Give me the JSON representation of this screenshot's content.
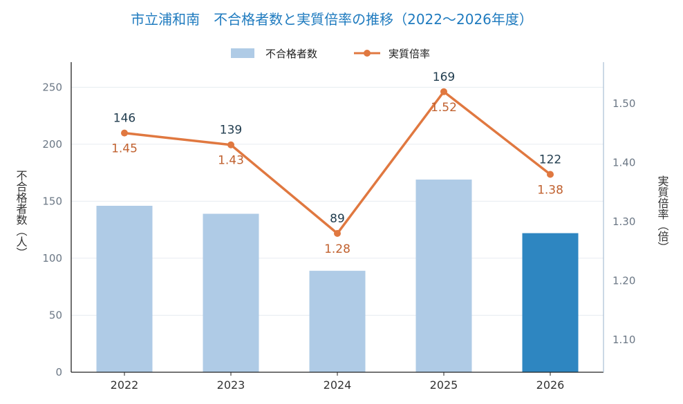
{
  "chart_data": {
    "type": "bar",
    "title": "市立浦和南　不合格者数と実質倍率の推移（2022〜2026年度）",
    "categories": [
      "2022",
      "2023",
      "2024",
      "2025",
      "2026"
    ],
    "series": [
      {
        "name": "不合格者数",
        "kind": "bar",
        "axis": "left",
        "values": [
          146,
          139,
          89,
          169,
          122
        ],
        "color": "#afcbe6",
        "highlight_color": "#2e86c1",
        "highlight_index": 4
      },
      {
        "name": "実質倍率",
        "kind": "line",
        "axis": "right",
        "values": [
          1.45,
          1.43,
          1.28,
          1.52,
          1.38
        ],
        "color": "#e07840"
      }
    ],
    "bar_labels": [
      "146",
      "139",
      "89",
      "169",
      "122"
    ],
    "rate_labels": [
      "1.45",
      "1.43",
      "1.28",
      "1.52",
      "1.38"
    ],
    "ylabel": "不合格者数（人）",
    "y2label": "実質倍率（倍）",
    "ylim": [
      0,
      272
    ],
    "y2lim": [
      1.045,
      1.57
    ],
    "yticks": [
      0,
      50,
      100,
      150,
      200,
      250
    ],
    "y2ticks": [
      "1.10",
      "1.20",
      "1.30",
      "1.40",
      "1.50"
    ],
    "grid": true,
    "legend_position": "top-center"
  }
}
